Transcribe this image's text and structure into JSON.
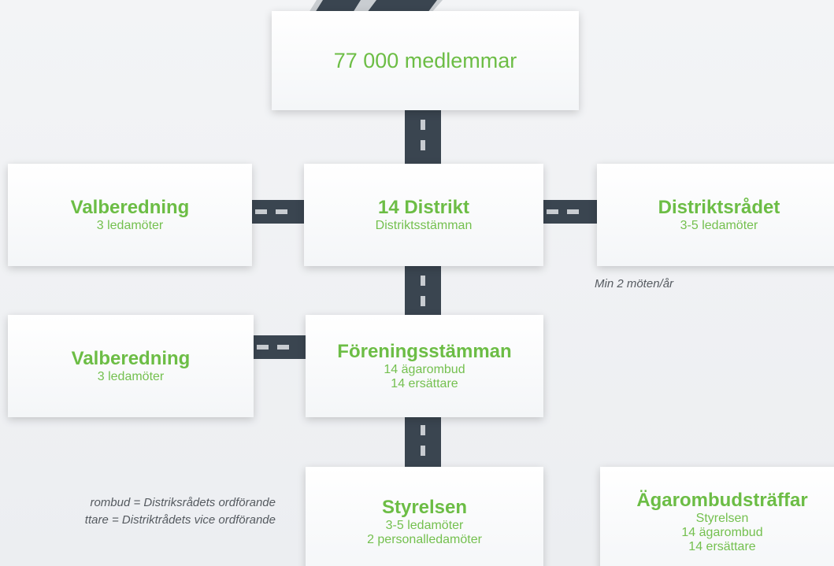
{
  "nodes": [
    {
      "title": "77 000 medlemmar"
    },
    {
      "title": "Valberedning",
      "lines": [
        "3 ledamöter"
      ]
    },
    {
      "title": "14 Distrikt",
      "lines": [
        "Distriktsstämman"
      ]
    },
    {
      "title": "Distriktsrådet",
      "lines": [
        "3-5 ledamöter"
      ]
    },
    {
      "title": "Valberedning",
      "lines": [
        "3 ledamöter"
      ]
    },
    {
      "title": "Föreningsstämman",
      "lines": [
        "14 ägarombud",
        "14 ersättare"
      ]
    },
    {
      "title": "Styrelsen",
      "lines": [
        "3-5 ledamöter",
        "2 personalledamöter"
      ]
    },
    {
      "title": "Ägarombudsträffar",
      "lines": [
        "Styrelsen",
        "14 ägarombud",
        "14 ersättare"
      ]
    }
  ],
  "notes": [
    "Min 2 möten/år"
  ],
  "legend": [
    "rombud = Distriksrådets ordförande",
    "ttare = Distriktrådets vice ordförande"
  ]
}
